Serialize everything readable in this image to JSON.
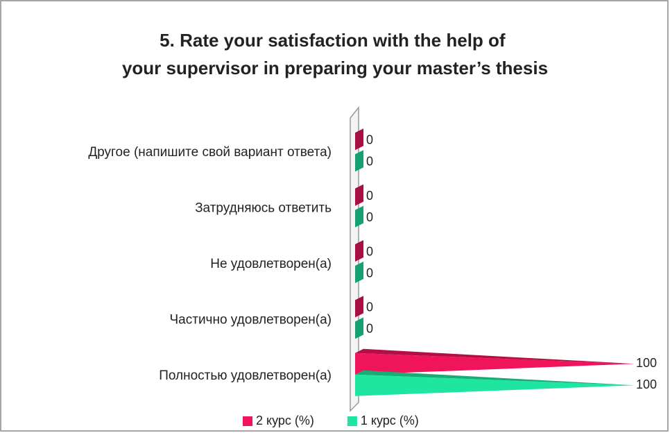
{
  "chart_data": {
    "type": "bar",
    "orientation": "horizontal",
    "title": "5. Rate your satisfaction with the help of your supervisor in preparing your master’s thesis",
    "categories": [
      "Другое (напишите свой вариант ответа)",
      "Затрудняюсь ответить",
      "Не удовлетворен(а)",
      "Частично удовлетворен(а)",
      "Полностью удовлетворен(а)"
    ],
    "series": [
      {
        "name": "2 курс (%)",
        "color": "#f0145a",
        "values": [
          0,
          0,
          0,
          0,
          100
        ]
      },
      {
        "name": "1 курс (%)",
        "color": "#1ee6a0",
        "values": [
          0,
          0,
          0,
          0,
          100
        ]
      }
    ],
    "xlim": [
      0,
      100
    ],
    "legend": "bottom"
  }
}
